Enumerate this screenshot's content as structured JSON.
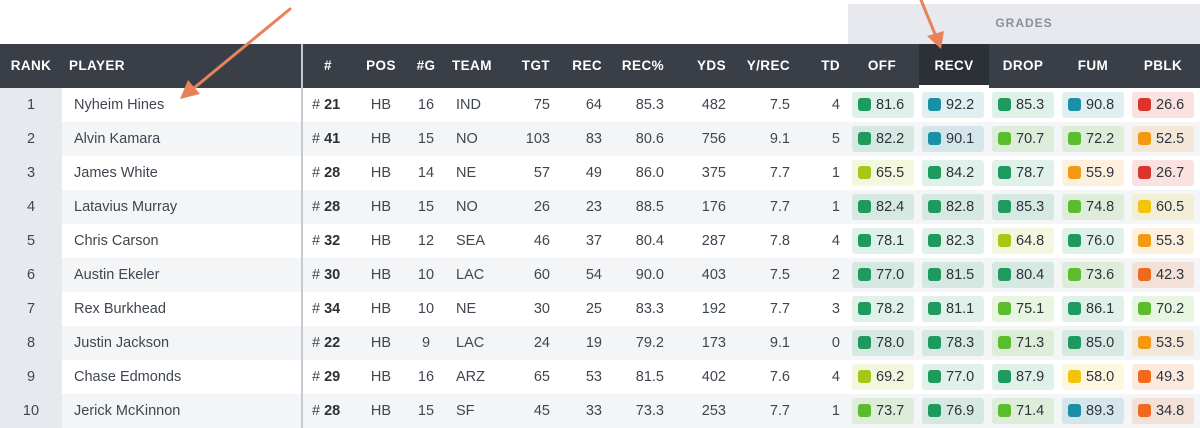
{
  "grades_label": "GRADES",
  "headers": {
    "rank": "RANK",
    "player": "PLAYER",
    "number": "#",
    "pos": "POS",
    "games": "#G",
    "team": "TEAM",
    "tgt": "TGT",
    "rec": "REC",
    "rec_pct": "REC%",
    "yds": "YDS",
    "yrec": "Y/REC",
    "td": "TD",
    "off": "OFF",
    "recv": "RECV",
    "drop": "DROP",
    "fum": "FUM",
    "pblk": "PBLK"
  },
  "sorted_column": "RECV",
  "rows": [
    {
      "rank": "1",
      "player": "Nyheim Hines",
      "number": "21",
      "pos": "HB",
      "games": "16",
      "team": "IND",
      "tgt": "75",
      "rec": "64",
      "rec_pct": "85.3",
      "yds": "482",
      "yrec": "7.5",
      "td": "4",
      "off": "81.6",
      "recv": "92.2",
      "drop": "85.3",
      "fum": "90.8",
      "pblk": "26.6"
    },
    {
      "rank": "2",
      "player": "Alvin Kamara",
      "number": "41",
      "pos": "HB",
      "games": "15",
      "team": "NO",
      "tgt": "103",
      "rec": "83",
      "rec_pct": "80.6",
      "yds": "756",
      "yrec": "9.1",
      "td": "5",
      "off": "82.2",
      "recv": "90.1",
      "drop": "70.7",
      "fum": "72.2",
      "pblk": "52.5"
    },
    {
      "rank": "3",
      "player": "James White",
      "number": "28",
      "pos": "HB",
      "games": "14",
      "team": "NE",
      "tgt": "57",
      "rec": "49",
      "rec_pct": "86.0",
      "yds": "375",
      "yrec": "7.7",
      "td": "1",
      "off": "65.5",
      "recv": "84.2",
      "drop": "78.7",
      "fum": "55.9",
      "pblk": "26.7"
    },
    {
      "rank": "4",
      "player": "Latavius Murray",
      "number": "28",
      "pos": "HB",
      "games": "15",
      "team": "NO",
      "tgt": "26",
      "rec": "23",
      "rec_pct": "88.5",
      "yds": "176",
      "yrec": "7.7",
      "td": "1",
      "off": "82.4",
      "recv": "82.8",
      "drop": "85.3",
      "fum": "74.8",
      "pblk": "60.5"
    },
    {
      "rank": "5",
      "player": "Chris Carson",
      "number": "32",
      "pos": "HB",
      "games": "12",
      "team": "SEA",
      "tgt": "46",
      "rec": "37",
      "rec_pct": "80.4",
      "yds": "287",
      "yrec": "7.8",
      "td": "4",
      "off": "78.1",
      "recv": "82.3",
      "drop": "64.8",
      "fum": "76.0",
      "pblk": "55.3"
    },
    {
      "rank": "6",
      "player": "Austin Ekeler",
      "number": "30",
      "pos": "HB",
      "games": "10",
      "team": "LAC",
      "tgt": "60",
      "rec": "54",
      "rec_pct": "90.0",
      "yds": "403",
      "yrec": "7.5",
      "td": "2",
      "off": "77.0",
      "recv": "81.5",
      "drop": "80.4",
      "fum": "73.6",
      "pblk": "42.3"
    },
    {
      "rank": "7",
      "player": "Rex Burkhead",
      "number": "34",
      "pos": "HB",
      "games": "10",
      "team": "NE",
      "tgt": "30",
      "rec": "25",
      "rec_pct": "83.3",
      "yds": "192",
      "yrec": "7.7",
      "td": "3",
      "off": "78.2",
      "recv": "81.1",
      "drop": "75.1",
      "fum": "86.1",
      "pblk": "70.2"
    },
    {
      "rank": "8",
      "player": "Justin Jackson",
      "number": "22",
      "pos": "HB",
      "games": "9",
      "team": "LAC",
      "tgt": "24",
      "rec": "19",
      "rec_pct": "79.2",
      "yds": "173",
      "yrec": "9.1",
      "td": "0",
      "off": "78.0",
      "recv": "78.3",
      "drop": "71.3",
      "fum": "85.0",
      "pblk": "53.5"
    },
    {
      "rank": "9",
      "player": "Chase Edmonds",
      "number": "29",
      "pos": "HB",
      "games": "16",
      "team": "ARZ",
      "tgt": "65",
      "rec": "53",
      "rec_pct": "81.5",
      "yds": "402",
      "yrec": "7.6",
      "td": "4",
      "off": "69.2",
      "recv": "77.0",
      "drop": "87.9",
      "fum": "58.0",
      "pblk": "49.3"
    },
    {
      "rank": "10",
      "player": "Jerick McKinnon",
      "number": "28",
      "pos": "HB",
      "games": "15",
      "team": "SF",
      "tgt": "45",
      "rec": "33",
      "rec_pct": "73.3",
      "yds": "253",
      "yrec": "7.7",
      "td": "1",
      "off": "73.7",
      "recv": "76.9",
      "drop": "71.4",
      "fum": "89.3",
      "pblk": "34.8"
    }
  ],
  "grade_colors": {
    "elite": "#1a8fa6",
    "high": "#1f9a5e",
    "good": "#5bbd2e",
    "above_avg": "#a5c816",
    "average": "#f2c40b",
    "below_avg": "#f39a12",
    "poor": "#ef6a1e",
    "bad": "#d9352b"
  },
  "annotation_color": "#e8825a"
}
